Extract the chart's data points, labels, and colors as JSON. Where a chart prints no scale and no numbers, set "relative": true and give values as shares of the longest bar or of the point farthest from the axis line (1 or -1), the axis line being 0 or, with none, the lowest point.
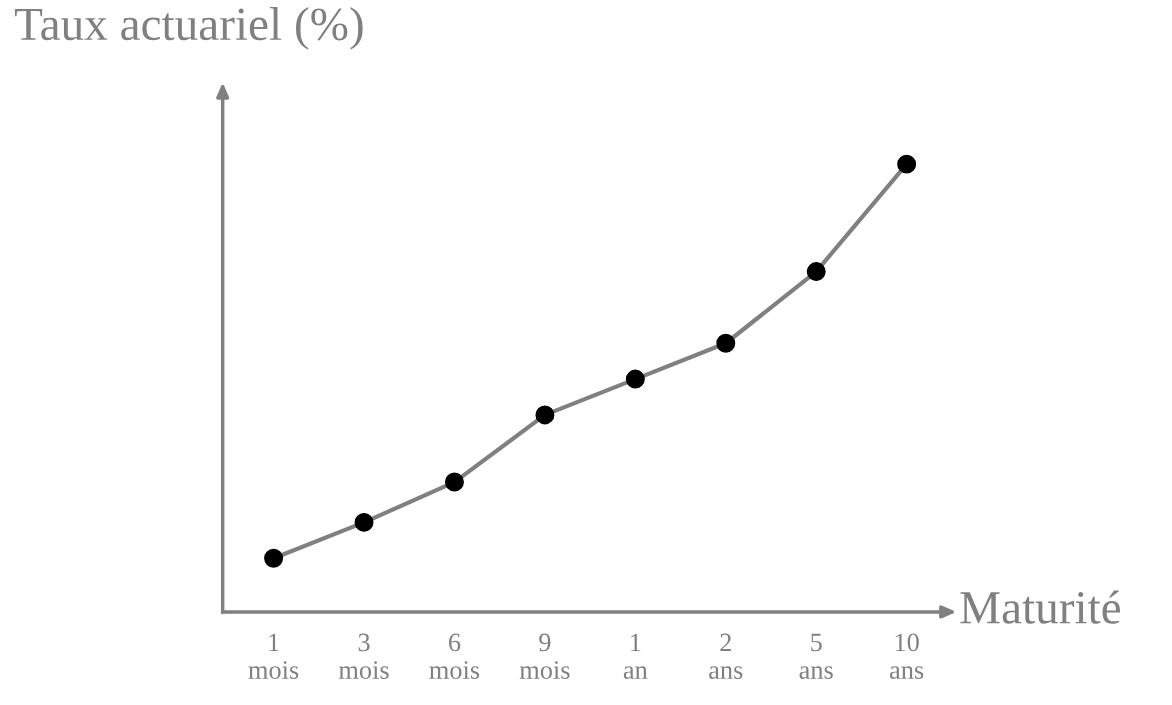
{
  "chart_data": {
    "type": "line",
    "relative": true,
    "ylabel": "Taux actuariel (%)",
    "xlabel": "Maturité",
    "categories": [
      "1\nmois",
      "3\nmois",
      "6\nmois",
      "9\nmois",
      "1\nan",
      "2\nans",
      "5\nans",
      "10\nans"
    ],
    "series": [
      {
        "color": "#808080",
        "colors": [
          "#000000",
          "#000000",
          "#000000",
          "#000000",
          "#000000",
          "#000000",
          "#000000",
          "#000000"
        ],
        "values": [
          0.12,
          0.2,
          0.29,
          0.44,
          0.52,
          0.6,
          0.76,
          1.0
        ]
      }
    ],
    "marker": "circle",
    "line_style": "solid",
    "grid": false,
    "legend": false
  }
}
